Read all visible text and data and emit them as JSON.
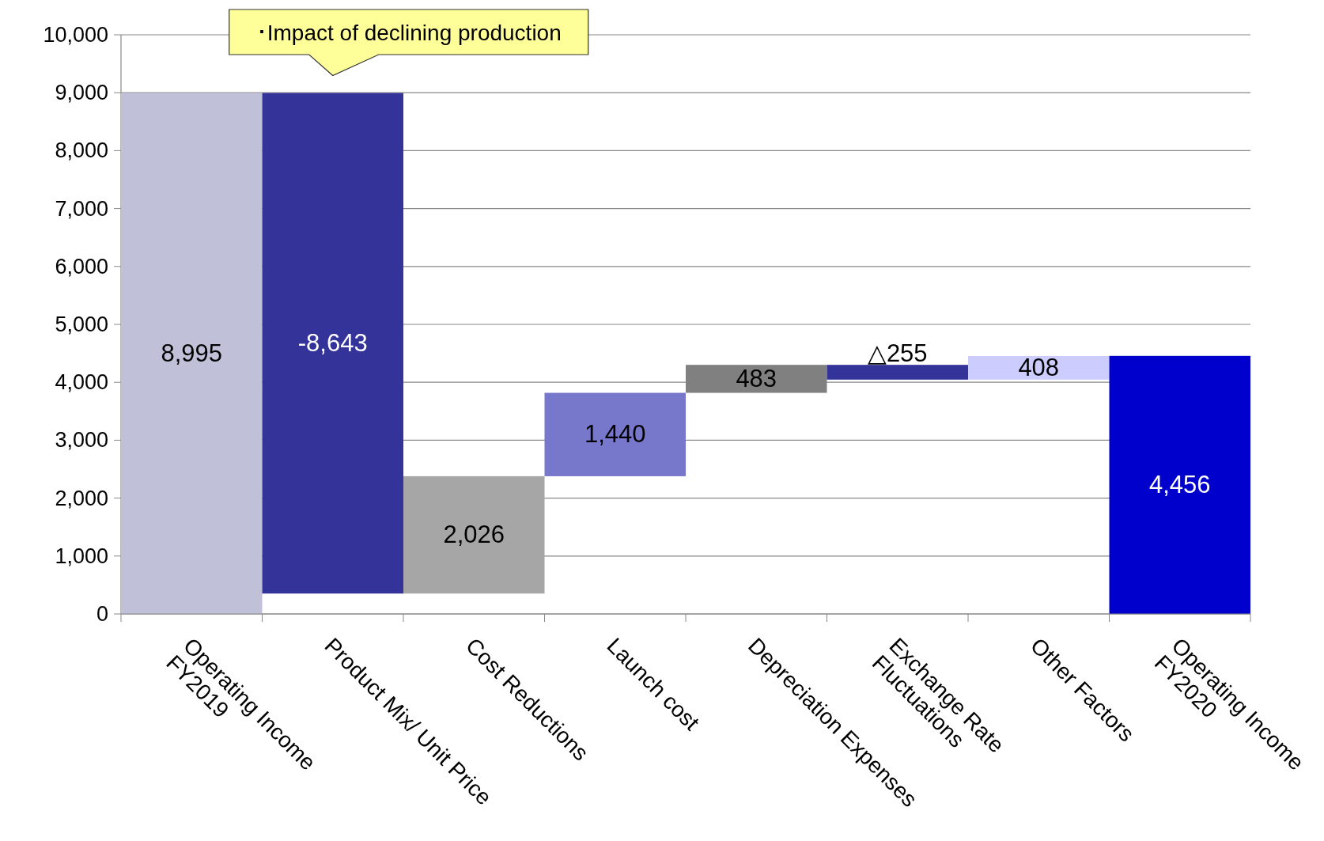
{
  "chart_data": {
    "type": "bar",
    "categories": [
      "Operating Income\nFY2019",
      "Product Mix/ Unit Price",
      "Cost Reductions",
      "Launch cost",
      "Depreciation Expenses",
      "Exchange Rate\nFluctuations",
      "Other Factors",
      "Operating Income\nFY2020"
    ],
    "values": [
      8995,
      -8643,
      2026,
      1440,
      483,
      -255,
      408,
      4456
    ],
    "base": [
      0,
      8995,
      352,
      2378,
      3818,
      4301,
      4046,
      0
    ],
    "colors": [
      "#c0c0d8",
      "#333399",
      "#a6a6a6",
      "#7777cc",
      "#808080",
      "#333399",
      "#ccccff",
      "#0000cc"
    ],
    "value_labels": [
      "8,995",
      "-8,643",
      "2,026",
      "1,440",
      "483",
      "△255",
      "408",
      "4,456"
    ],
    "ylim": [
      0,
      10000
    ],
    "yticks": [
      0,
      {
        "value": 1000,
        "label": "1,000"
      },
      {
        "value": 2000,
        "label": "2,000"
      },
      {
        "value": 3000,
        "label": "3,000"
      },
      {
        "value": 4000,
        "label": "4,000"
      },
      {
        "value": 5000,
        "label": "5,000"
      },
      {
        "value": 6000,
        "label": "6,000"
      },
      {
        "value": 7000,
        "label": "7,000"
      },
      {
        "value": 8000,
        "label": "8,000"
      },
      {
        "value": 9000,
        "label": "9,000"
      },
      {
        "value": 10000,
        "label": "10,000"
      }
    ],
    "grid": "y",
    "annotations": [
      {
        "text": "･Impact of declining production",
        "x": "Product Mix/ Unit Price",
        "y": 8995
      }
    ]
  }
}
